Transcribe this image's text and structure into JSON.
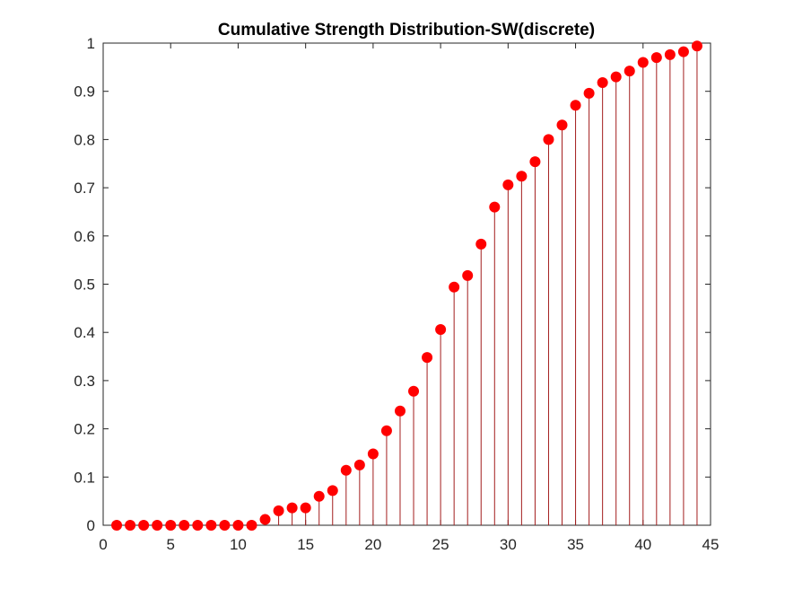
{
  "chart_data": {
    "type": "stem",
    "title": "Cumulative Strength Distribution-SW(discrete)",
    "xlabel": "",
    "ylabel": "",
    "xlim": [
      0,
      45
    ],
    "ylim": [
      0,
      1
    ],
    "xticks": [
      0,
      5,
      10,
      15,
      20,
      25,
      30,
      35,
      40,
      45
    ],
    "yticks": [
      0,
      0.1,
      0.2,
      0.3,
      0.4,
      0.5,
      0.6,
      0.7,
      0.8,
      0.9,
      1
    ],
    "xtick_labels": [
      "0",
      "5",
      "10",
      "15",
      "20",
      "25",
      "30",
      "35",
      "40",
      "45"
    ],
    "ytick_labels": [
      "0",
      "0.1",
      "0.2",
      "0.3",
      "0.4",
      "0.5",
      "0.6",
      "0.7",
      "0.8",
      "0.9",
      "1"
    ],
    "grid": false,
    "box": true,
    "marker": "filled-circle",
    "x": [
      1,
      2,
      3,
      4,
      5,
      6,
      7,
      8,
      9,
      10,
      11,
      12,
      13,
      14,
      15,
      16,
      17,
      18,
      19,
      20,
      21,
      22,
      23,
      24,
      25,
      26,
      27,
      28,
      29,
      30,
      31,
      32,
      33,
      34,
      35,
      36,
      37,
      38,
      39,
      40,
      41,
      42,
      43,
      44
    ],
    "y": [
      0,
      0,
      0,
      0,
      0,
      0,
      0,
      0,
      0,
      0,
      0,
      0.012,
      0.03,
      0.036,
      0.036,
      0.06,
      0.072,
      0.114,
      0.125,
      0.148,
      0.196,
      0.237,
      0.278,
      0.348,
      0.406,
      0.494,
      0.518,
      0.583,
      0.66,
      0.706,
      0.724,
      0.754,
      0.8,
      0.83,
      0.871,
      0.896,
      0.918,
      0.93,
      0.942,
      0.96,
      0.97,
      0.976,
      0.982,
      0.994
    ]
  },
  "colors": {
    "series": "#ff0000",
    "stem": "#a31d1d",
    "axes": "#262626",
    "background": "#ffffff"
  }
}
